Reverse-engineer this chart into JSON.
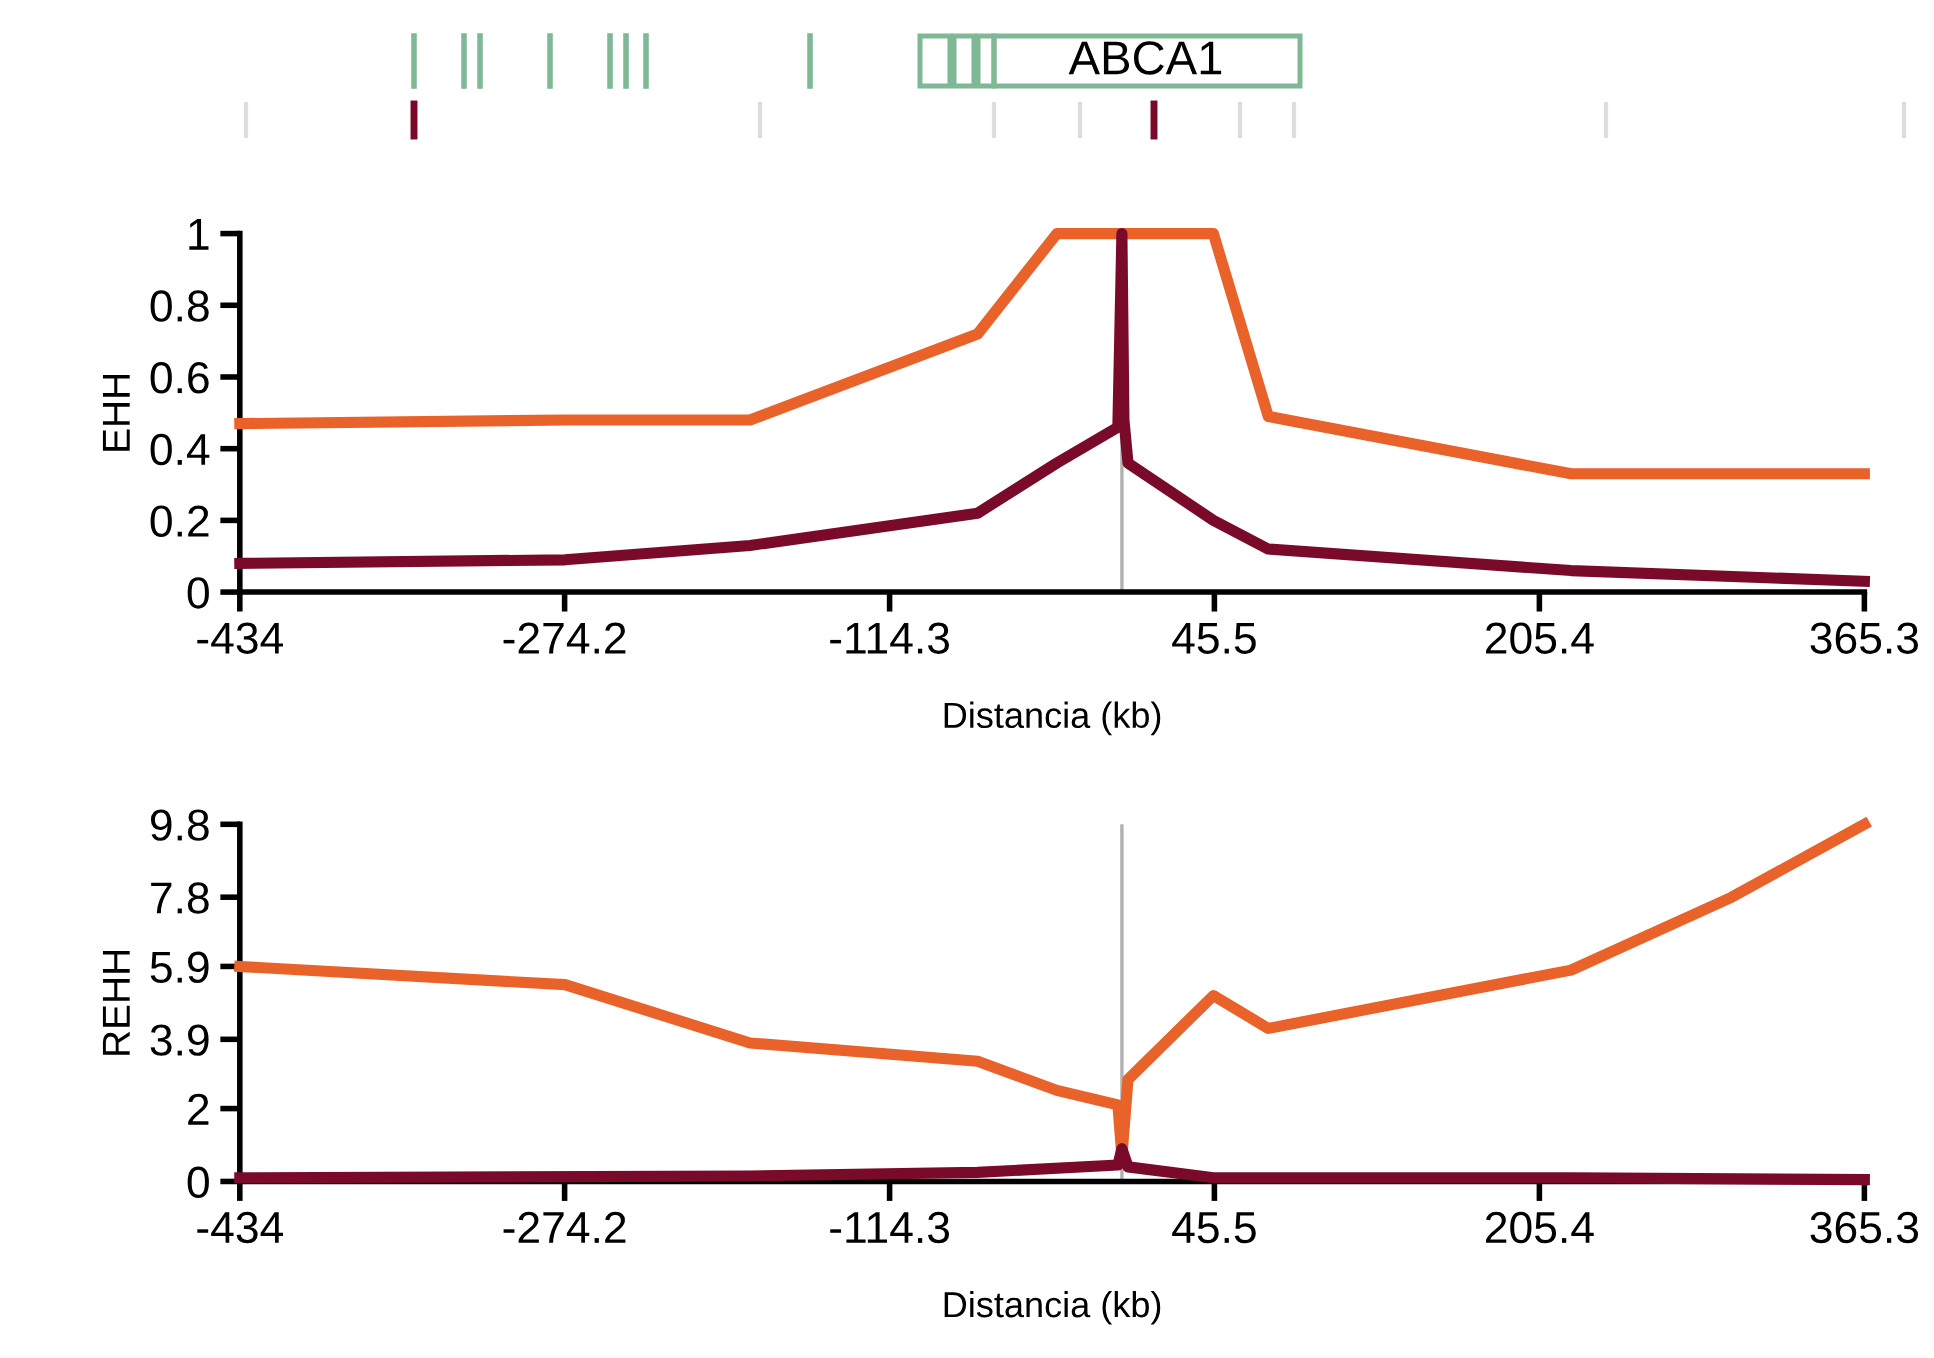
{
  "chart_data": [
    {
      "type": "line",
      "ylabel": "EHH",
      "xlabel": "Distancia (kb)",
      "annotations": [
        "ABCA1"
      ],
      "xlim": [
        -434,
        365.3
      ],
      "xticks": [
        -434,
        -274.2,
        -114.3,
        45.5,
        205.4,
        365.3
      ],
      "ylim": [
        0,
        1
      ],
      "yticks": [
        0,
        0.2,
        0.4,
        0.6,
        0.8,
        1
      ],
      "grid": false,
      "legend": false,
      "ref_lines": [
        {
          "axis": "x",
          "value": 0,
          "color": "#b0b0b0"
        }
      ],
      "series": [
        {
          "color": "#e8622a",
          "x": [
            -434,
            -274,
            -183,
            -71,
            -32,
            45,
            72,
            221,
            365.3
          ],
          "values": [
            0.47,
            0.48,
            0.48,
            0.72,
            1.0,
            1.0,
            0.49,
            0.33,
            0.33
          ]
        },
        {
          "color": "#7a0a2a",
          "x": [
            -434,
            -274,
            -183,
            -71,
            -32,
            -2,
            0,
            1,
            3,
            45,
            72,
            221,
            365.3
          ],
          "values": [
            0.08,
            0.09,
            0.13,
            0.22,
            0.36,
            0.46,
            1.0,
            0.48,
            0.36,
            0.2,
            0.12,
            0.06,
            0.03
          ]
        }
      ]
    },
    {
      "type": "line",
      "ylabel": "REHH",
      "xlabel": "Distancia (kb)",
      "xlim": [
        -434,
        365.3
      ],
      "xticks": [
        -434,
        -274.2,
        -114.3,
        45.5,
        205.4,
        365.3
      ],
      "ylim": [
        0,
        9.8
      ],
      "yticks": [
        0,
        2,
        3.9,
        5.9,
        7.8,
        9.8
      ],
      "grid": false,
      "legend": false,
      "ref_lines": [
        {
          "axis": "x",
          "value": 0,
          "color": "#b0b0b0"
        }
      ],
      "series": [
        {
          "color": "#e8622a",
          "x": [
            -434,
            -274,
            -183,
            -71,
            -32,
            -2,
            0,
            3,
            45,
            72,
            221,
            300,
            365.3
          ],
          "values": [
            5.9,
            5.4,
            3.8,
            3.3,
            2.5,
            2.1,
            0.7,
            2.8,
            5.1,
            4.2,
            5.8,
            7.8,
            9.8
          ]
        },
        {
          "color": "#7a0a2a",
          "x": [
            -434,
            -183,
            -71,
            -2,
            0,
            3,
            45,
            221,
            365.3
          ],
          "values": [
            0.1,
            0.15,
            0.25,
            0.45,
            0.9,
            0.4,
            0.1,
            0.1,
            0.05
          ]
        }
      ]
    }
  ]
}
